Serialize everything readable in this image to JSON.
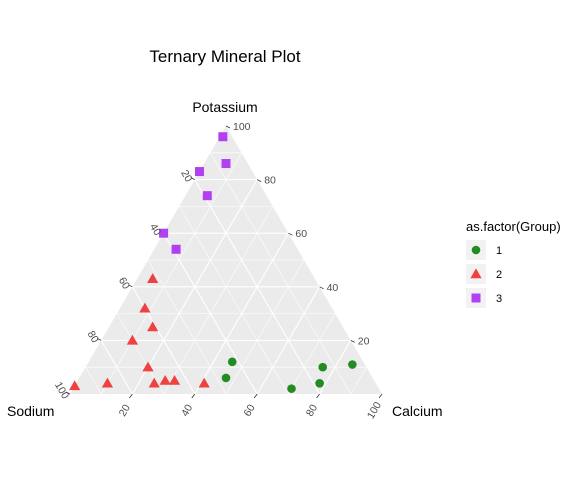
{
  "chart_data": {
    "type": "ternary-scatter",
    "title": "Ternary Mineral Plot",
    "axes": {
      "top": "Potassium",
      "left": "Sodium",
      "right": "Calcium"
    },
    "ticks": {
      "right_edge": [
        "100",
        "80",
        "60",
        "40",
        "20"
      ],
      "left_edge": [
        "20",
        "40",
        "60",
        "80",
        "100"
      ],
      "bottom_edge": [
        "20",
        "40",
        "60",
        "80",
        "100"
      ]
    },
    "grid": true,
    "legend": {
      "title": "as.factor(Group)",
      "placement": "right",
      "entries": [
        {
          "label": "1",
          "color": "#228B22",
          "shape": "circle"
        },
        {
          "label": "2",
          "color": "#F04040",
          "shape": "triangle"
        },
        {
          "label": "3",
          "color": "#B040F0",
          "shape": "square"
        }
      ]
    },
    "series": [
      {
        "group": "1",
        "color": "#228B22",
        "shape": "circle",
        "points": [
          {
            "potassium": 12,
            "calcium": 46,
            "sodium": 42
          },
          {
            "potassium": 6,
            "calcium": 47,
            "sodium": 47
          },
          {
            "potassium": 10,
            "calcium": 76,
            "sodium": 14
          },
          {
            "potassium": 11,
            "calcium": 85,
            "sodium": 4
          },
          {
            "potassium": 2,
            "calcium": 70,
            "sodium": 28
          },
          {
            "potassium": 4,
            "calcium": 78,
            "sodium": 18
          }
        ]
      },
      {
        "group": "2",
        "color": "#F04040",
        "shape": "triangle",
        "points": [
          {
            "potassium": 43,
            "calcium": 5,
            "sodium": 52
          },
          {
            "potassium": 32,
            "calcium": 8,
            "sodium": 60
          },
          {
            "potassium": 25,
            "calcium": 14,
            "sodium": 61
          },
          {
            "potassium": 20,
            "calcium": 10,
            "sodium": 70
          },
          {
            "potassium": 10,
            "calcium": 20,
            "sodium": 70
          },
          {
            "potassium": 3,
            "calcium": 0,
            "sodium": 97
          },
          {
            "potassium": 4,
            "calcium": 10,
            "sodium": 86
          },
          {
            "potassium": 4,
            "calcium": 25,
            "sodium": 71
          },
          {
            "potassium": 5,
            "calcium": 31,
            "sodium": 64
          },
          {
            "potassium": 5,
            "calcium": 28,
            "sodium": 67
          },
          {
            "potassium": 4,
            "calcium": 41,
            "sodium": 55
          }
        ]
      },
      {
        "group": "3",
        "color": "#B040F0",
        "shape": "square",
        "points": [
          {
            "potassium": 96,
            "calcium": 1,
            "sodium": 3
          },
          {
            "potassium": 86,
            "calcium": 7,
            "sodium": 7
          },
          {
            "potassium": 83,
            "calcium": 0,
            "sodium": 17
          },
          {
            "potassium": 74,
            "calcium": 7,
            "sodium": 19
          },
          {
            "potassium": 60,
            "calcium": 0,
            "sodium": 40
          },
          {
            "potassium": 54,
            "calcium": 7,
            "sodium": 39
          }
        ]
      }
    ]
  }
}
